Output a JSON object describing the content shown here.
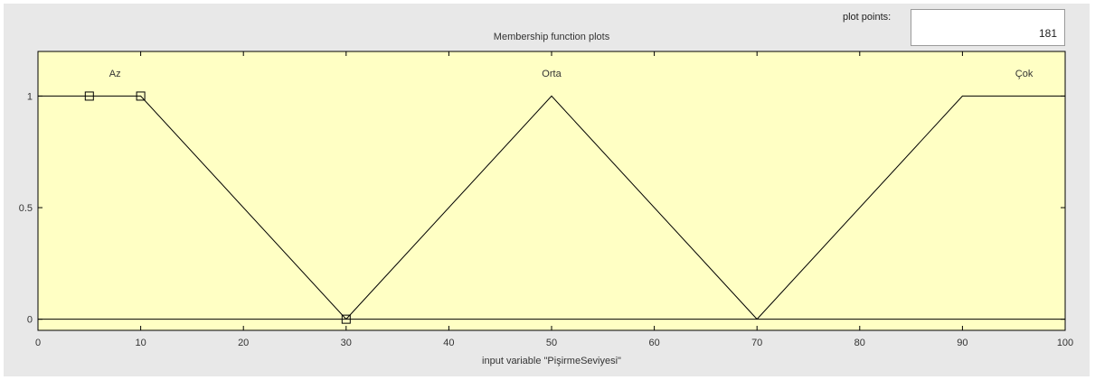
{
  "plot_points": {
    "label": "plot points:",
    "value": "181"
  },
  "colors": {
    "plot_background": "#ffffc4",
    "panel_background": "#e8e8e8",
    "line": "#000000"
  },
  "chart_data": {
    "type": "line",
    "title": "Membership function plots",
    "xlabel": "input variable \"PişirmeSeviyesi\"",
    "ylabel": "",
    "xlim": [
      0,
      100
    ],
    "ylim": [
      -0.05,
      1.2
    ],
    "xticks": [
      0,
      10,
      20,
      30,
      40,
      50,
      60,
      70,
      80,
      90,
      100
    ],
    "yticks": [
      0,
      0.5,
      1
    ],
    "series": [
      {
        "name": "Az",
        "x": [
          0,
          10,
          30
        ],
        "y": [
          1,
          1,
          0
        ]
      },
      {
        "name": "Orta",
        "x": [
          30,
          50,
          70
        ],
        "y": [
          0,
          1,
          0
        ]
      },
      {
        "name": "Çok",
        "x": [
          70,
          90,
          100
        ],
        "y": [
          0,
          1,
          1
        ]
      }
    ],
    "series_labels": [
      {
        "text": "Az",
        "x": 7.5
      },
      {
        "text": "Orta",
        "x": 50
      },
      {
        "text": "Çok",
        "x": 96
      }
    ],
    "selected_series": "Az",
    "selected_points": [
      {
        "x": 5,
        "y": 1
      },
      {
        "x": 10,
        "y": 1
      },
      {
        "x": 30,
        "y": 0
      }
    ]
  }
}
